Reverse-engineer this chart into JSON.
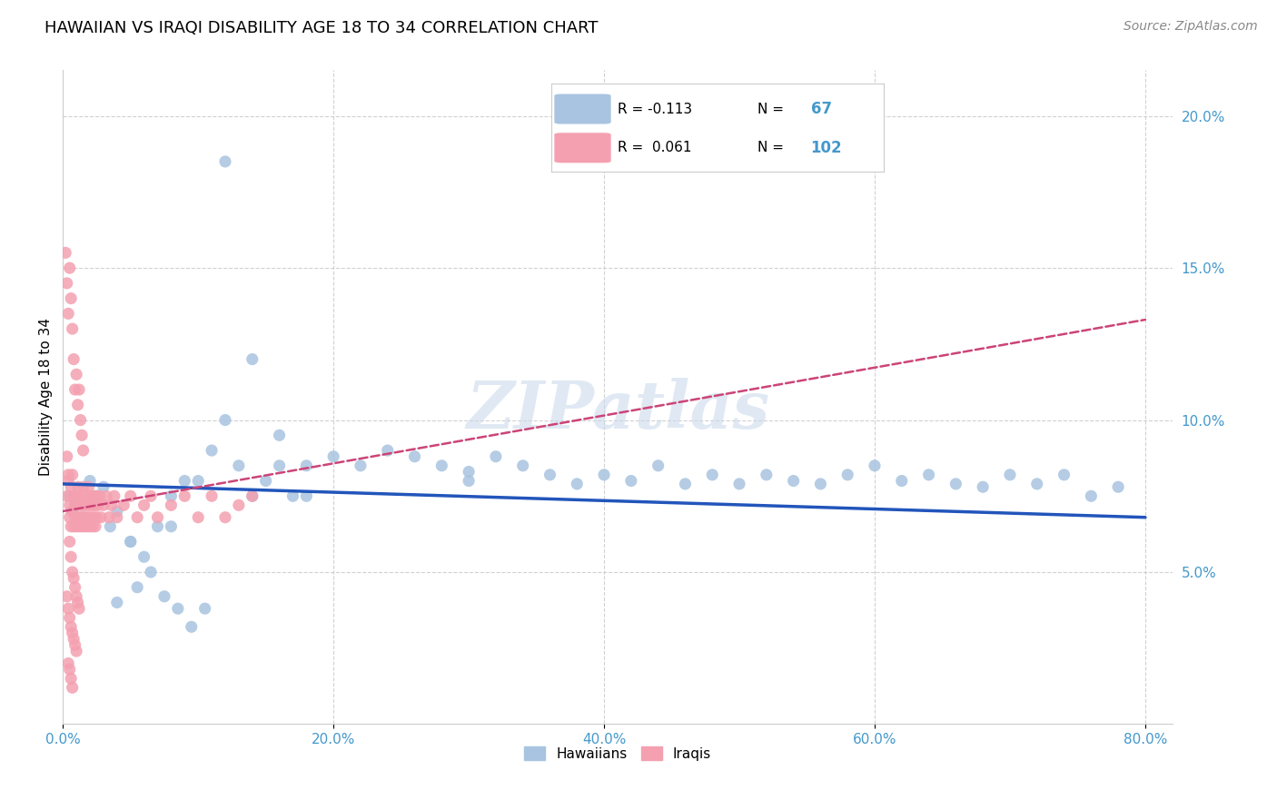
{
  "title": "HAWAIIAN VS IRAQI DISABILITY AGE 18 TO 34 CORRELATION CHART",
  "source": "Source: ZipAtlas.com",
  "ylabel": "Disability Age 18 to 34",
  "xlim": [
    0.0,
    0.82
  ],
  "ylim": [
    0.0,
    0.215
  ],
  "xticks": [
    0.0,
    0.2,
    0.4,
    0.6,
    0.8
  ],
  "xtick_labels": [
    "0.0%",
    "20.0%",
    "40.0%",
    "60.0%",
    "80.0%"
  ],
  "yticks_right": [
    0.05,
    0.1,
    0.15,
    0.2
  ],
  "ytick_labels_right": [
    "5.0%",
    "10.0%",
    "15.0%",
    "20.0%"
  ],
  "legend_r_hawaiian": "-0.113",
  "legend_n_hawaiian": "67",
  "legend_r_iraqi": "0.061",
  "legend_n_iraqi": "102",
  "hawaiian_color": "#a8c4e0",
  "iraqi_color": "#f4a0b0",
  "hawaiian_line_color": "#2255bb",
  "iraqi_line_color": "#cc4477",
  "watermark": "ZIPatlas",
  "background_color": "#ffffff",
  "grid_color": "#cccccc",
  "hawaiians_x": [
    0.005,
    0.007,
    0.01,
    0.015,
    0.02,
    0.025,
    0.03,
    0.035,
    0.04,
    0.05,
    0.06,
    0.07,
    0.08,
    0.09,
    0.1,
    0.11,
    0.12,
    0.13,
    0.14,
    0.15,
    0.16,
    0.17,
    0.18,
    0.2,
    0.22,
    0.24,
    0.26,
    0.28,
    0.3,
    0.32,
    0.34,
    0.36,
    0.38,
    0.4,
    0.42,
    0.44,
    0.46,
    0.48,
    0.5,
    0.52,
    0.54,
    0.56,
    0.58,
    0.6,
    0.62,
    0.64,
    0.66,
    0.68,
    0.7,
    0.72,
    0.74,
    0.76,
    0.78,
    0.3,
    0.18,
    0.08,
    0.05,
    0.04,
    0.055,
    0.065,
    0.075,
    0.085,
    0.095,
    0.105,
    0.12,
    0.14,
    0.16
  ],
  "hawaiians_y": [
    0.075,
    0.07,
    0.072,
    0.068,
    0.08,
    0.075,
    0.078,
    0.065,
    0.07,
    0.06,
    0.055,
    0.065,
    0.075,
    0.08,
    0.08,
    0.09,
    0.1,
    0.085,
    0.075,
    0.08,
    0.085,
    0.075,
    0.085,
    0.088,
    0.085,
    0.09,
    0.088,
    0.085,
    0.083,
    0.088,
    0.085,
    0.082,
    0.079,
    0.082,
    0.08,
    0.085,
    0.079,
    0.082,
    0.079,
    0.082,
    0.08,
    0.079,
    0.082,
    0.085,
    0.08,
    0.082,
    0.079,
    0.078,
    0.082,
    0.079,
    0.082,
    0.075,
    0.078,
    0.08,
    0.075,
    0.065,
    0.06,
    0.04,
    0.045,
    0.05,
    0.042,
    0.038,
    0.032,
    0.038,
    0.185,
    0.12,
    0.095
  ],
  "iraqis_x": [
    0.003,
    0.004,
    0.005,
    0.005,
    0.006,
    0.006,
    0.007,
    0.007,
    0.008,
    0.008,
    0.009,
    0.009,
    0.01,
    0.01,
    0.011,
    0.011,
    0.012,
    0.012,
    0.013,
    0.013,
    0.014,
    0.014,
    0.015,
    0.015,
    0.016,
    0.016,
    0.017,
    0.017,
    0.018,
    0.018,
    0.019,
    0.019,
    0.02,
    0.02,
    0.021,
    0.021,
    0.022,
    0.022,
    0.023,
    0.023,
    0.024,
    0.024,
    0.025,
    0.025,
    0.026,
    0.027,
    0.028,
    0.03,
    0.032,
    0.034,
    0.036,
    0.038,
    0.04,
    0.045,
    0.05,
    0.055,
    0.06,
    0.065,
    0.07,
    0.08,
    0.09,
    0.1,
    0.11,
    0.12,
    0.13,
    0.14,
    0.002,
    0.003,
    0.004,
    0.005,
    0.006,
    0.007,
    0.008,
    0.009,
    0.01,
    0.011,
    0.012,
    0.013,
    0.014,
    0.015,
    0.003,
    0.004,
    0.005,
    0.006,
    0.007,
    0.008,
    0.009,
    0.01,
    0.011,
    0.012,
    0.003,
    0.004,
    0.005,
    0.006,
    0.007,
    0.008,
    0.009,
    0.01,
    0.004,
    0.005,
    0.006,
    0.007
  ],
  "iraqis_y": [
    0.075,
    0.08,
    0.072,
    0.068,
    0.078,
    0.065,
    0.082,
    0.07,
    0.075,
    0.065,
    0.072,
    0.068,
    0.075,
    0.065,
    0.078,
    0.068,
    0.072,
    0.065,
    0.075,
    0.068,
    0.072,
    0.065,
    0.078,
    0.068,
    0.072,
    0.065,
    0.075,
    0.068,
    0.072,
    0.065,
    0.078,
    0.068,
    0.072,
    0.065,
    0.075,
    0.068,
    0.072,
    0.065,
    0.075,
    0.068,
    0.072,
    0.065,
    0.075,
    0.068,
    0.072,
    0.075,
    0.068,
    0.072,
    0.075,
    0.068,
    0.072,
    0.075,
    0.068,
    0.072,
    0.075,
    0.068,
    0.072,
    0.075,
    0.068,
    0.072,
    0.075,
    0.068,
    0.075,
    0.068,
    0.072,
    0.075,
    0.155,
    0.145,
    0.135,
    0.15,
    0.14,
    0.13,
    0.12,
    0.11,
    0.115,
    0.105,
    0.11,
    0.1,
    0.095,
    0.09,
    0.088,
    0.082,
    0.06,
    0.055,
    0.05,
    0.048,
    0.045,
    0.042,
    0.04,
    0.038,
    0.042,
    0.038,
    0.035,
    0.032,
    0.03,
    0.028,
    0.026,
    0.024,
    0.02,
    0.018,
    0.015,
    0.012
  ],
  "hawaiian_trendline": {
    "x_start": 0.0,
    "x_end": 0.8,
    "y_start": 0.079,
    "y_end": 0.068
  },
  "iraqi_trendline": {
    "x_start": 0.0,
    "x_end": 0.8,
    "y_start": 0.07,
    "y_end": 0.133
  }
}
